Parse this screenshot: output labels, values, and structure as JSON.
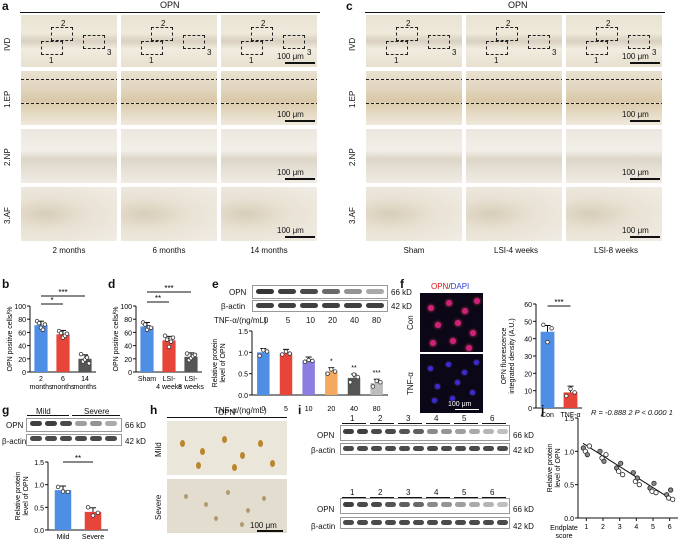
{
  "panel_a": {
    "letter": "a",
    "title": "OPN",
    "rows": [
      "IVD",
      "1.EP",
      "2.NP",
      "3.AF"
    ],
    "columns": [
      "2 months",
      "6 months",
      "14 months"
    ],
    "scale_bar": "100 μm",
    "box_numbers": [
      "1",
      "2",
      "3"
    ]
  },
  "panel_c": {
    "letter": "c",
    "title": "OPN",
    "rows": [
      "IVD",
      "1.EP",
      "2.NP",
      "3.AF"
    ],
    "columns": [
      "Sham",
      "LSI-4 weeks",
      "LSI-8 weeks"
    ],
    "scale_bar": "100 μm",
    "box_numbers": [
      "1",
      "2",
      "3"
    ]
  },
  "panel_b": {
    "letter": "b",
    "sig_top": "***",
    "sig_low": "*",
    "categories": [
      "2 months",
      "6 months",
      "14 months"
    ]
  },
  "panel_d": {
    "letter": "d",
    "sig_top": "***",
    "sig_low": "**",
    "categories": [
      "Sham",
      "LSI-4 weeks",
      "LSI-8 weeks"
    ]
  },
  "panel_e": {
    "letter": "e",
    "blot_labels": [
      "OPN",
      "β-actin"
    ],
    "blot_sizes": [
      "66 kD",
      "42 kD"
    ],
    "tnf_label": "TNF-α/(ng/mL)",
    "doses": [
      "0",
      "5",
      "10",
      "20",
      "40",
      "80"
    ],
    "sig": [
      "",
      "",
      "",
      "*",
      "**",
      "***"
    ]
  },
  "panel_f": {
    "letter": "f",
    "stain_opn": "OPN",
    "stain_sep": "/",
    "stain_dapi": "DAPI",
    "rows": [
      "Con",
      "TNF-α"
    ],
    "scale_bar": "100 μm",
    "sig": "***"
  },
  "panel_g": {
    "letter": "g",
    "groups": [
      "Mild",
      "Severe"
    ],
    "blot_labels": [
      "OPN",
      "β-actin"
    ],
    "blot_sizes": [
      "66 kD",
      "42 kD"
    ],
    "sig": "**"
  },
  "panel_h": {
    "letter": "h",
    "title": "OPN",
    "rows": [
      "Mild",
      "Severe"
    ],
    "scale_bar": "100 μm"
  },
  "panel_i": {
    "letter": "i",
    "lanes": [
      "1",
      "2",
      "3",
      "4",
      "5",
      "6"
    ],
    "blot_labels": [
      "OPN",
      "β-actin"
    ],
    "blot_sizes": [
      "66 kD",
      "42 kD"
    ]
  },
  "panel_j": {
    "letter": "j",
    "stats": "R = -0.888 2  P < 0.000 1"
  },
  "chart_data": [
    {
      "id": "b",
      "type": "bar",
      "categories": [
        "2 months",
        "6 months",
        "14 months"
      ],
      "values": [
        71,
        57,
        20
      ],
      "points": [
        [
          77,
          74,
          67,
          64,
          72
        ],
        [
          62,
          59,
          52,
          55,
          58
        ],
        [
          27,
          16,
          19,
          22,
          13
        ]
      ],
      "ylabel": "OPN positive cells/%",
      "ylim": [
        0,
        100
      ],
      "yticks": [
        0,
        20,
        40,
        60,
        80,
        100
      ],
      "colors": [
        "#4e8fe5",
        "#e8453a",
        "#555555"
      ]
    },
    {
      "id": "d",
      "type": "bar",
      "categories": [
        "Sham",
        "LSI-4 weeks",
        "LSI-8 weeks"
      ],
      "values": [
        69,
        48,
        23
      ],
      "points": [
        [
          75,
          72,
          64,
          68,
          67
        ],
        [
          55,
          49,
          38,
          46,
          52
        ],
        [
          28,
          18,
          21,
          24,
          26
        ]
      ],
      "ylabel": "OPN positive cells/%",
      "ylim": [
        0,
        100
      ],
      "yticks": [
        0,
        20,
        40,
        60,
        80,
        100
      ],
      "colors": [
        "#4e8fe5",
        "#e8453a",
        "#555555"
      ]
    },
    {
      "id": "e",
      "type": "bar",
      "categories": [
        "0",
        "5",
        "10",
        "20",
        "40",
        "80"
      ],
      "values": [
        1.0,
        0.98,
        0.8,
        0.55,
        0.4,
        0.28
      ],
      "points": [
        [
          0.92,
          1.05,
          1.02
        ],
        [
          0.95,
          1.02,
          0.97
        ],
        [
          0.78,
          0.82,
          0.8
        ],
        [
          0.5,
          0.6,
          0.55
        ],
        [
          0.3,
          0.48,
          0.42
        ],
        [
          0.2,
          0.33,
          0.3
        ]
      ],
      "xlabel": "TNF-α/(ng/mL)",
      "ylabel": "Relative protein level of OPN",
      "ylim": [
        0,
        1.5
      ],
      "yticks": [
        0,
        0.5,
        1.0,
        1.5
      ],
      "colors": [
        "#4e8fe5",
        "#e8453a",
        "#8a7fe0",
        "#f4a860",
        "#555555",
        "#bdbdbd"
      ]
    },
    {
      "id": "f",
      "type": "bar",
      "categories": [
        "Con",
        "TNF-α"
      ],
      "values": [
        44,
        9
      ],
      "points": [
        [
          48,
          38,
          46
        ],
        [
          7,
          11,
          9
        ]
      ],
      "ylabel": "OPN fluorescence integrated density (A.U.)",
      "ylim": [
        0,
        60
      ],
      "yticks": [
        0,
        10,
        20,
        30,
        40,
        50,
        60
      ],
      "colors": [
        "#4e8fe5",
        "#e8453a"
      ]
    },
    {
      "id": "g",
      "type": "bar",
      "categories": [
        "Mild",
        "Severe"
      ],
      "values": [
        0.88,
        0.4
      ],
      "points": [
        [
          0.95,
          0.85,
          0.84
        ],
        [
          0.5,
          0.32,
          0.38
        ]
      ],
      "ylabel": "Relative protein level of OPN",
      "ylim": [
        0,
        1.5
      ],
      "yticks": [
        0,
        0.5,
        1.0,
        1.5
      ],
      "colors": [
        "#4e8fe5",
        "#e8453a"
      ]
    },
    {
      "id": "j",
      "type": "scatter",
      "x": [
        1,
        1,
        1,
        1,
        2,
        2,
        2,
        2,
        3,
        3,
        3,
        3,
        4,
        4,
        4,
        4,
        5,
        5,
        5,
        5,
        6,
        6,
        6,
        6
      ],
      "y": [
        1.05,
        1.0,
        0.95,
        1.08,
        1.0,
        0.9,
        0.85,
        0.95,
        0.75,
        0.7,
        0.82,
        0.65,
        0.68,
        0.55,
        0.6,
        0.5,
        0.45,
        0.4,
        0.52,
        0.38,
        0.35,
        0.3,
        0.42,
        0.28
      ],
      "fit": [
        [
          0.8,
          1.12
        ],
        [
          6.3,
          0.25
        ]
      ],
      "xlabel": "Endplate score",
      "ylabel": "Relative protein level of OPN",
      "xlim": [
        1,
        6
      ],
      "xticks": [
        1,
        2,
        3,
        4,
        5,
        6
      ],
      "ylim": [
        0,
        1.5
      ],
      "yticks": [
        0,
        0.5,
        1.0,
        1.5
      ]
    }
  ]
}
